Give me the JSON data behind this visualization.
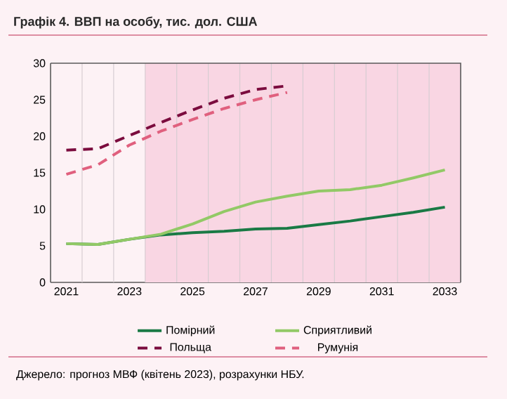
{
  "chart_data": {
    "type": "line",
    "title": "Графік 4. ВВП на особу, тис. дол. США",
    "x": [
      2021,
      2022,
      2023,
      2024,
      2025,
      2026,
      2027,
      2028,
      2029,
      2030,
      2031,
      2032,
      2033
    ],
    "series": [
      {
        "name": "Помірний",
        "color": "#1a7a45",
        "line_style": "solid",
        "values": [
          5.3,
          5.2,
          5.9,
          6.5,
          6.8,
          7.0,
          7.3,
          7.4,
          7.9,
          8.4,
          9.0,
          9.6,
          10.3
        ]
      },
      {
        "name": "Сприятливий",
        "color": "#92c966",
        "line_style": "solid",
        "values": [
          5.3,
          5.2,
          5.9,
          6.6,
          8.0,
          9.7,
          11.0,
          11.8,
          12.5,
          12.7,
          13.3,
          14.3,
          15.4
        ]
      },
      {
        "name": "Польща",
        "color": "#7b0c3e",
        "line_style": "dashed",
        "values": [
          18.1,
          18.3,
          20.1,
          21.9,
          23.6,
          25.2,
          26.4,
          26.9,
          null,
          null,
          null,
          null,
          null
        ]
      },
      {
        "name": "Румунія",
        "color": "#e0607e",
        "line_style": "dashed",
        "values": [
          14.8,
          16.1,
          18.8,
          20.7,
          22.3,
          23.8,
          25.0,
          26.0,
          null,
          null,
          null,
          null,
          null
        ]
      }
    ],
    "xlim": [
      2020.5,
      2033.5
    ],
    "xticks": [
      2021,
      2023,
      2025,
      2027,
      2029,
      2031,
      2033
    ],
    "ylim": [
      0,
      30
    ],
    "yticks": [
      0,
      5,
      10,
      15,
      20,
      25,
      30
    ],
    "bands": [
      {
        "axis": "x",
        "from": 2023.5,
        "to": 2033.5,
        "color": "#f9d6e3"
      }
    ],
    "grid": "x",
    "legend": "bottom",
    "marker": "none",
    "annotations": [
      "Джерело: прогноз МВФ (квітень 2023), розрахунки НБУ."
    ]
  }
}
